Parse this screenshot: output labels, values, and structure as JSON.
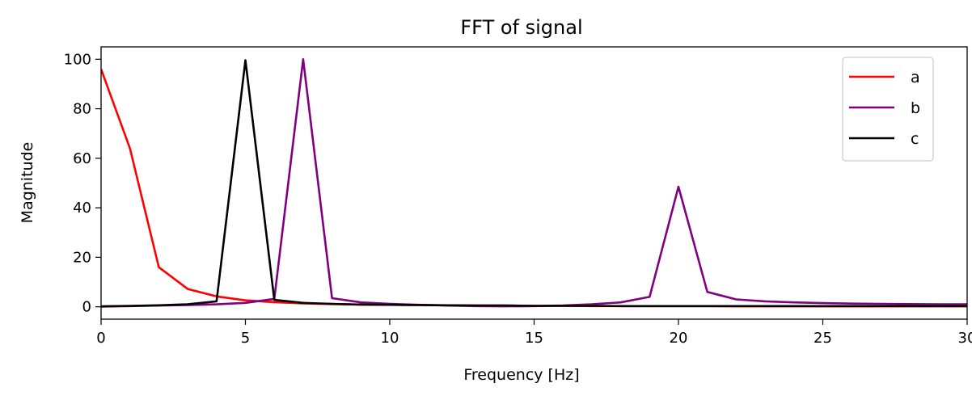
{
  "chart_data": {
    "type": "line",
    "title": "FFT of signal",
    "xlabel": "Frequency [Hz]",
    "ylabel": "Magnitude",
    "xlim": [
      0,
      30
    ],
    "ylim": [
      -5,
      105
    ],
    "xticks": [
      0,
      5,
      10,
      15,
      20,
      25,
      30
    ],
    "yticks": [
      0,
      20,
      40,
      60,
      80,
      100
    ],
    "grid": false,
    "legend_position": "top-right",
    "series": [
      {
        "name": "a",
        "color": "#ff0000",
        "x": [
          0,
          1,
          2,
          3,
          4,
          5,
          6,
          7,
          8,
          9,
          10,
          11,
          12,
          13,
          14,
          15,
          16,
          17,
          18,
          19,
          20,
          21,
          22,
          23,
          24,
          25,
          26,
          27,
          28,
          29,
          30
        ],
        "y": [
          96,
          64,
          16,
          7.2,
          4.2,
          2.6,
          1.9,
          1.4,
          1.1,
          0.9,
          0.8,
          0.7,
          0.6,
          0.5,
          0.5,
          0.4,
          0.4,
          0.3,
          0.3,
          0.3,
          0.3,
          0.3,
          0.2,
          0.2,
          0.2,
          0.2,
          0.2,
          0.2,
          0.2,
          0.2,
          0.2
        ]
      },
      {
        "name": "b",
        "color": "#800080",
        "x": [
          0,
          1,
          2,
          3,
          4,
          5,
          6,
          7,
          8,
          9,
          10,
          11,
          12,
          13,
          14,
          15,
          16,
          17,
          18,
          19,
          20,
          21,
          22,
          23,
          24,
          25,
          26,
          27,
          28,
          29,
          30
        ],
        "y": [
          0.1,
          0.3,
          0.5,
          0.7,
          1.0,
          1.6,
          3.2,
          100,
          3.5,
          1.8,
          1.2,
          0.8,
          0.5,
          0.3,
          0.2,
          0.3,
          0.5,
          1.0,
          1.8,
          4.0,
          48.5,
          6.0,
          3.0,
          2.2,
          1.8,
          1.5,
          1.3,
          1.2,
          1.1,
          1.0,
          1.0
        ]
      },
      {
        "name": "c",
        "color": "#000000",
        "x": [
          0,
          1,
          2,
          3,
          4,
          5,
          6,
          7,
          8,
          9,
          10,
          11,
          12,
          13,
          14,
          15,
          16,
          17,
          18,
          19,
          20,
          21,
          22,
          23,
          24,
          25,
          26,
          27,
          28,
          29,
          30
        ],
        "y": [
          0.2,
          0.4,
          0.6,
          1.0,
          2.2,
          99.6,
          2.8,
          1.6,
          1.2,
          0.9,
          0.8,
          0.7,
          0.6,
          0.5,
          0.5,
          0.4,
          0.4,
          0.4,
          0.3,
          0.3,
          0.3,
          0.3,
          0.3,
          0.3,
          0.3,
          0.3,
          0.3,
          0.3,
          0.3,
          0.3,
          0.3
        ]
      }
    ]
  }
}
